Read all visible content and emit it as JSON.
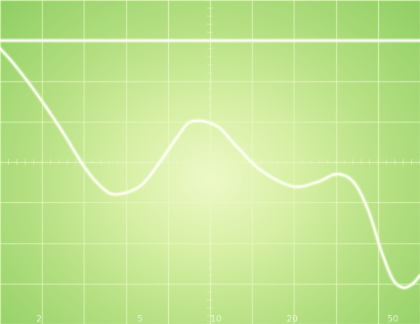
{
  "chart_data": {
    "type": "line",
    "title": "",
    "xlabel": "",
    "ylabel": "",
    "x_scale": "log",
    "x_tick_labels": [
      "2",
      "5",
      "10",
      "20",
      "50"
    ],
    "x_ticks": [
      2,
      5,
      10,
      20,
      50
    ],
    "xlim": [
      1.4,
      64
    ],
    "ylim": [
      -5,
      3
    ],
    "grid": true,
    "series": [
      {
        "x": [
          1.4,
          2,
          3,
          4,
          5,
          6,
          7,
          10,
          12,
          15,
          20,
          25,
          30,
          35,
          40,
          45,
          50,
          55,
          64
        ],
        "y": [
          2,
          2,
          2,
          2,
          2,
          2,
          2,
          2,
          2,
          2,
          2,
          2,
          2,
          2,
          2,
          2,
          2,
          2,
          2
        ]
      },
      {
        "x": [
          1.4,
          1.6,
          2,
          2.5,
          3,
          3.5,
          4,
          5,
          6,
          7,
          8,
          10,
          12,
          15,
          20,
          25,
          30,
          35,
          40,
          45,
          50,
          55,
          60,
          64
        ],
        "y": [
          1.8,
          1.4,
          0.6,
          -0.3,
          -1.1,
          -1.6,
          -1.8,
          -1.6,
          -1.0,
          -0.4,
          0.0,
          -0.1,
          -0.6,
          -1.2,
          -1.6,
          -1.5,
          -1.3,
          -1.5,
          -2.2,
          -3.2,
          -3.9,
          -4.1,
          -4.0,
          -3.8
        ]
      }
    ],
    "colors": {
      "trace": "#fbfff0",
      "grid": "#e9f8c4"
    }
  }
}
